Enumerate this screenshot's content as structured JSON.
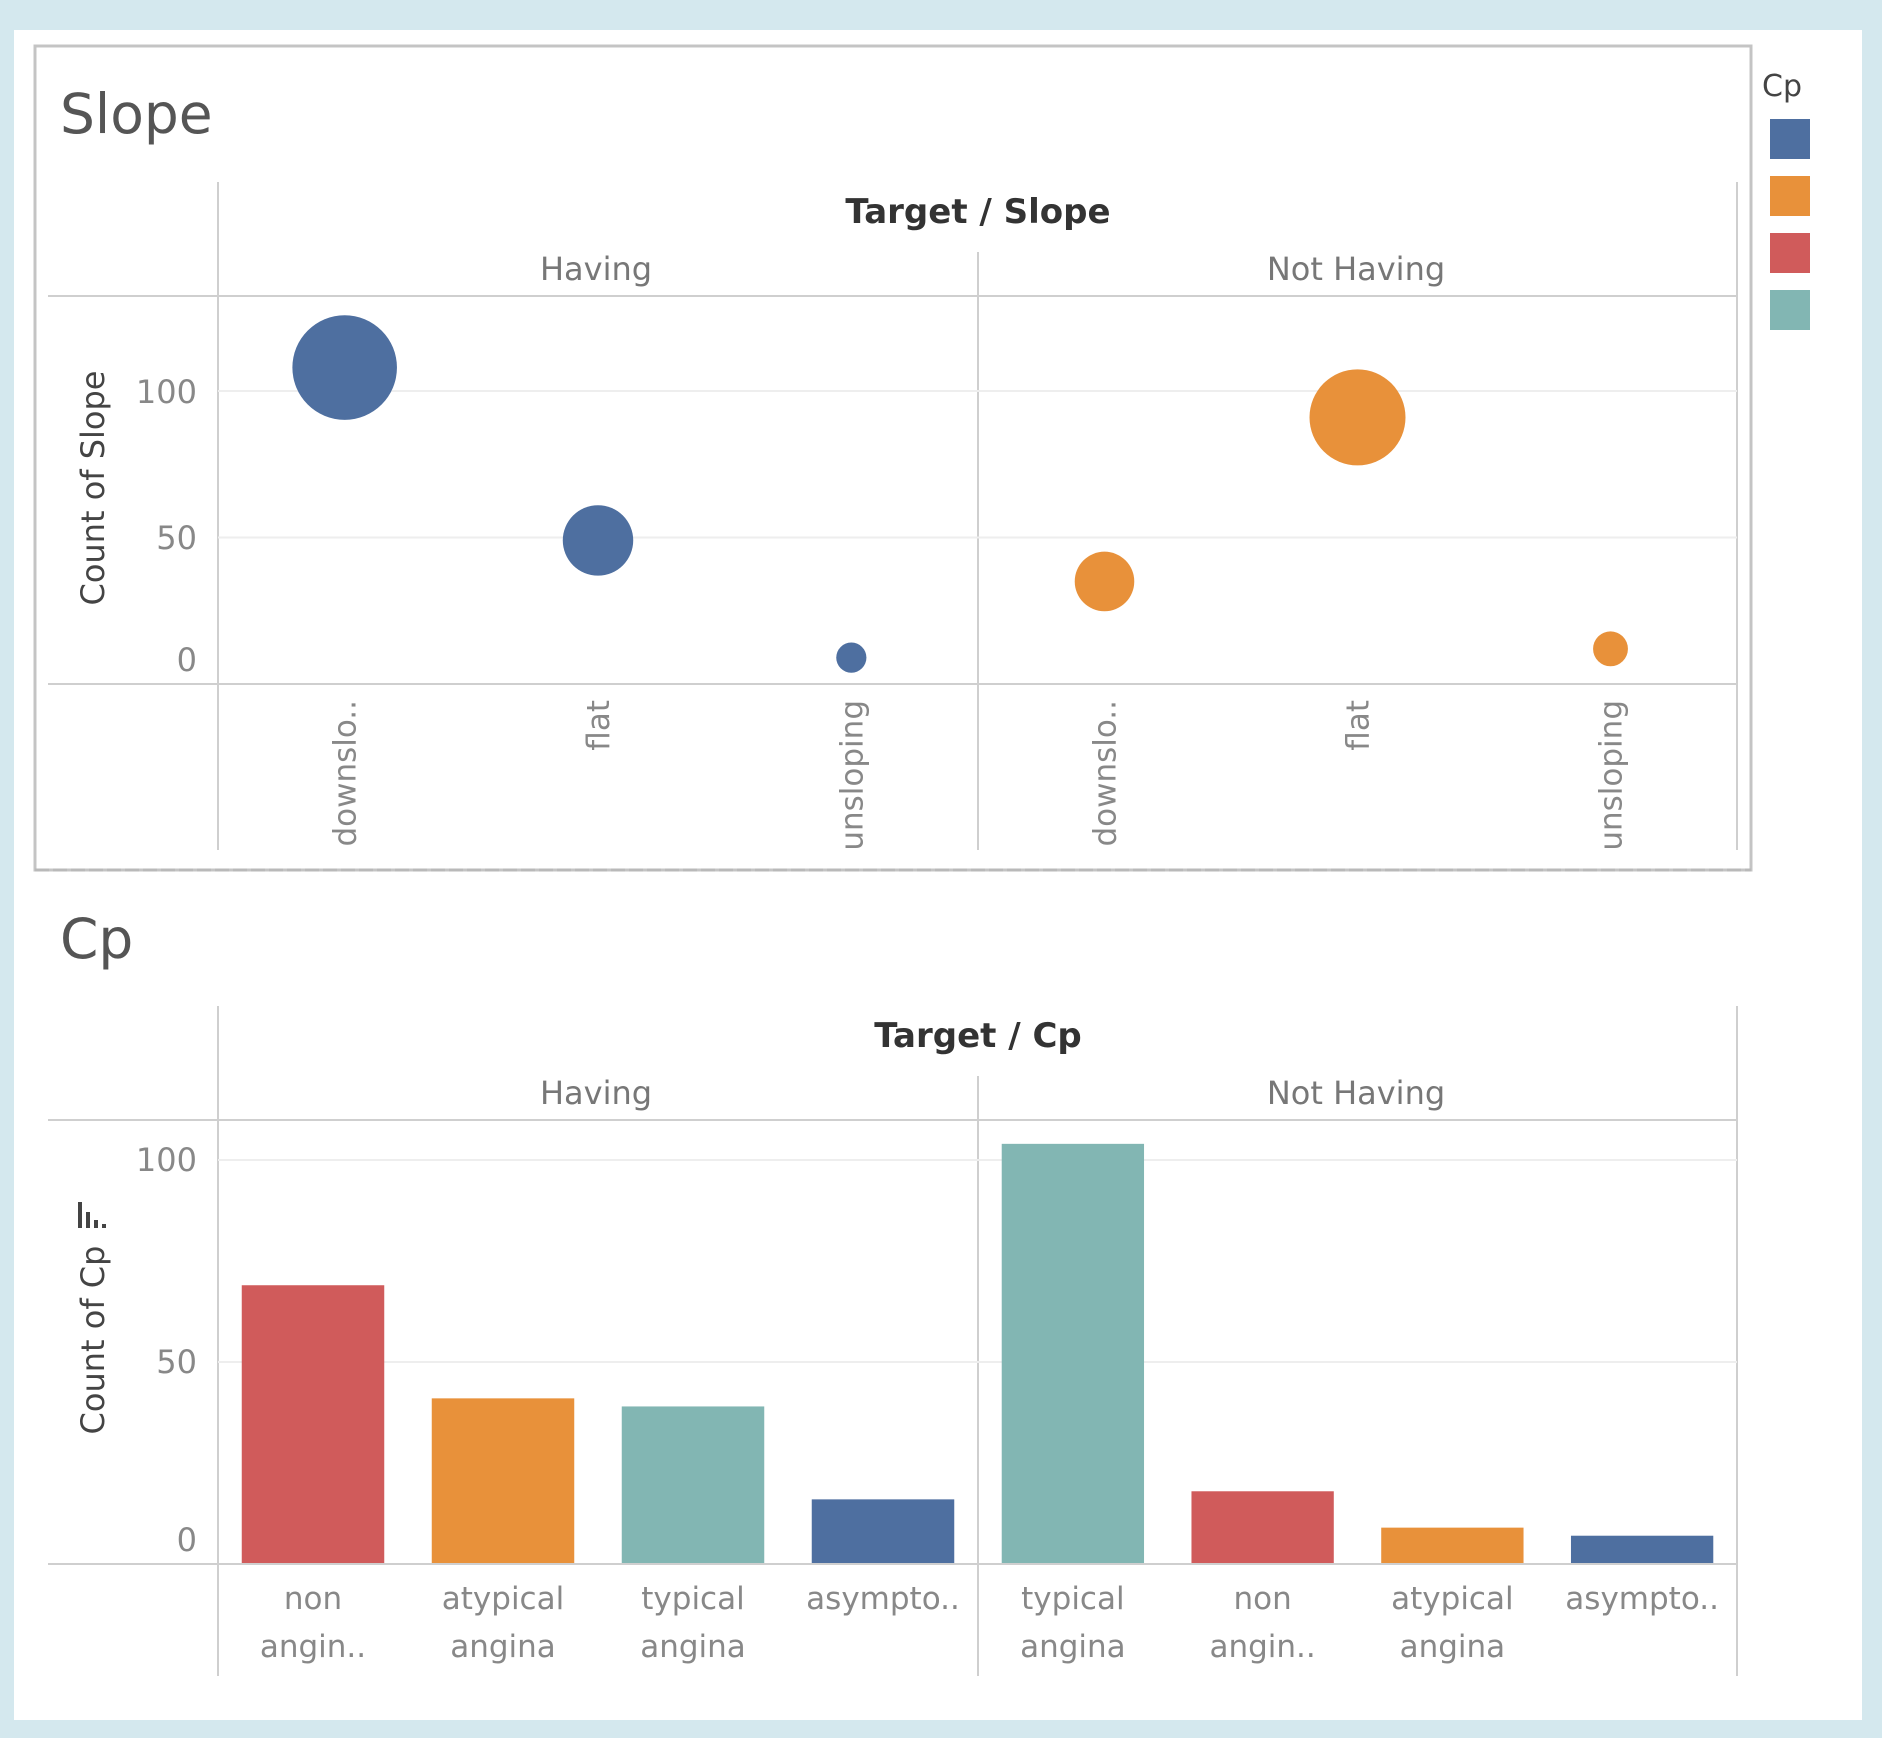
{
  "legend": {
    "title": "Cp",
    "colors": [
      "#4e6fa0",
      "#e8913a",
      "#d05b5b",
      "#82b6b3"
    ]
  },
  "chart_data": [
    {
      "type": "scatter",
      "title": "Slope",
      "header": "Target / Slope",
      "ylabel": "Count of Slope",
      "ylim": [
        0,
        130
      ],
      "yticks": [
        "0",
        "50",
        "100"
      ],
      "panels": [
        {
          "name": "Having",
          "points": [
            {
              "category": "downslo..",
              "value": 108,
              "color": "#4e6fa0"
            },
            {
              "category": "flat",
              "value": 49,
              "color": "#4e6fa0"
            },
            {
              "category": "unsloping",
              "value": 9,
              "color": "#4e6fa0"
            }
          ]
        },
        {
          "name": "Not Having",
          "points": [
            {
              "category": "downslo..",
              "value": 35,
              "color": "#e8913a"
            },
            {
              "category": "flat",
              "value": 91,
              "color": "#e8913a"
            },
            {
              "category": "unsloping",
              "value": 12,
              "color": "#e8913a"
            }
          ]
        }
      ]
    },
    {
      "type": "bar",
      "title": "Cp",
      "header": "Target / Cp",
      "ylabel": "Count of Cp",
      "ylim": [
        0,
        110
      ],
      "yticks": [
        "0",
        "50",
        "100"
      ],
      "panels": [
        {
          "name": "Having",
          "bars": [
            {
              "category": [
                "non",
                "angin.."
              ],
              "value": 69,
              "color": "#d05b5b"
            },
            {
              "category": [
                "atypical",
                "angina"
              ],
              "value": 41,
              "color": "#e8913a"
            },
            {
              "category": [
                "typical",
                "angina"
              ],
              "value": 39,
              "color": "#82b6b3"
            },
            {
              "category": [
                "asympto.."
              ],
              "value": 16,
              "color": "#4e6fa0"
            }
          ]
        },
        {
          "name": "Not Having",
          "bars": [
            {
              "category": [
                "typical",
                "angina"
              ],
              "value": 104,
              "color": "#82b6b3"
            },
            {
              "category": [
                "non",
                "angin.."
              ],
              "value": 18,
              "color": "#d05b5b"
            },
            {
              "category": [
                "atypical",
                "angina"
              ],
              "value": 9,
              "color": "#e8913a"
            },
            {
              "category": [
                "asympto.."
              ],
              "value": 7,
              "color": "#4e6fa0"
            }
          ]
        }
      ]
    }
  ]
}
